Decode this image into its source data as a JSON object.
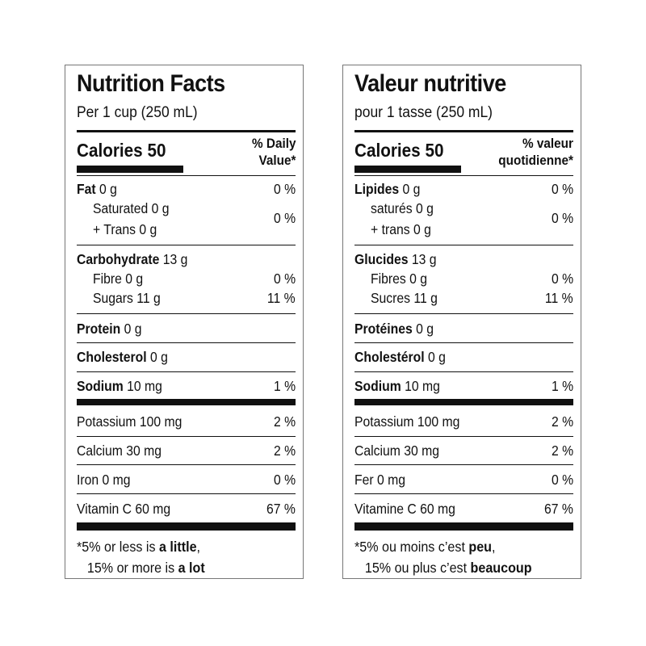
{
  "labels": {
    "en": {
      "title": "Nutrition Facts",
      "serving": "Per 1 cup (250 mL)",
      "calories": "Calories 50",
      "dv_line1": "% Daily",
      "dv_line2": "Value*",
      "fat": {
        "name": "Fat",
        "amount": " 0 g",
        "pct": "0 %"
      },
      "saturated": "Saturated 0 g",
      "trans": "+ Trans 0 g",
      "sat_trans_pct": "0 %",
      "carb": {
        "name": "Carbohydrate",
        "amount": " 13 g"
      },
      "fibre": {
        "name": "Fibre 0 g",
        "pct": "0 %"
      },
      "sugars": {
        "name": "Sugars 11 g",
        "pct": "11 %"
      },
      "protein": {
        "name": "Protein",
        "amount": " 0 g"
      },
      "cholesterol": {
        "name": "Cholesterol",
        "amount": " 0 g"
      },
      "sodium": {
        "name": "Sodium",
        "amount": " 10 mg",
        "pct": "1 %"
      },
      "potassium": {
        "name": "Potassium 100 mg",
        "pct": "2 %"
      },
      "calcium": {
        "name": "Calcium 30 mg",
        "pct": "2 %"
      },
      "iron": {
        "name": "Iron 0 mg",
        "pct": "0 %"
      },
      "vitc": {
        "name": "Vitamin C 60 mg",
        "pct": "67 %"
      },
      "foot1_pre": "*5% or less is ",
      "foot1_bold": "a little",
      "foot1_post": ",",
      "foot2_pre": "15% or more is ",
      "foot2_bold": "a lot"
    },
    "fr": {
      "title": "Valeur nutritive",
      "serving": "pour 1 tasse (250 mL)",
      "calories": "Calories 50",
      "dv_line1": "% valeur",
      "dv_line2": "quotidienne*",
      "fat": {
        "name": "Lipides",
        "amount": " 0 g",
        "pct": "0 %"
      },
      "saturated": "saturés 0 g",
      "trans": "+ trans 0 g",
      "sat_trans_pct": "0 %",
      "carb": {
        "name": "Glucides",
        "amount": " 13 g"
      },
      "fibre": {
        "name": "Fibres 0 g",
        "pct": "0 %"
      },
      "sugars": {
        "name": "Sucres 11 g",
        "pct": "11 %"
      },
      "protein": {
        "name": "Protéines",
        "amount": " 0 g"
      },
      "cholesterol": {
        "name": "Cholestérol",
        "amount": " 0 g"
      },
      "sodium": {
        "name": "Sodium",
        "amount": " 10 mg",
        "pct": "1 %"
      },
      "potassium": {
        "name": "Potassium 100 mg",
        "pct": "2 %"
      },
      "calcium": {
        "name": "Calcium 30 mg",
        "pct": "2 %"
      },
      "iron": {
        "name": "Fer 0 mg",
        "pct": "0 %"
      },
      "vitc": {
        "name": "Vitamine C 60 mg",
        "pct": "67 %"
      },
      "foot1_pre": "*5% ou moins c’est ",
      "foot1_bold": "peu",
      "foot1_post": ",",
      "foot2_pre": "15% ou plus c’est ",
      "foot2_bold": "beaucoup"
    }
  }
}
